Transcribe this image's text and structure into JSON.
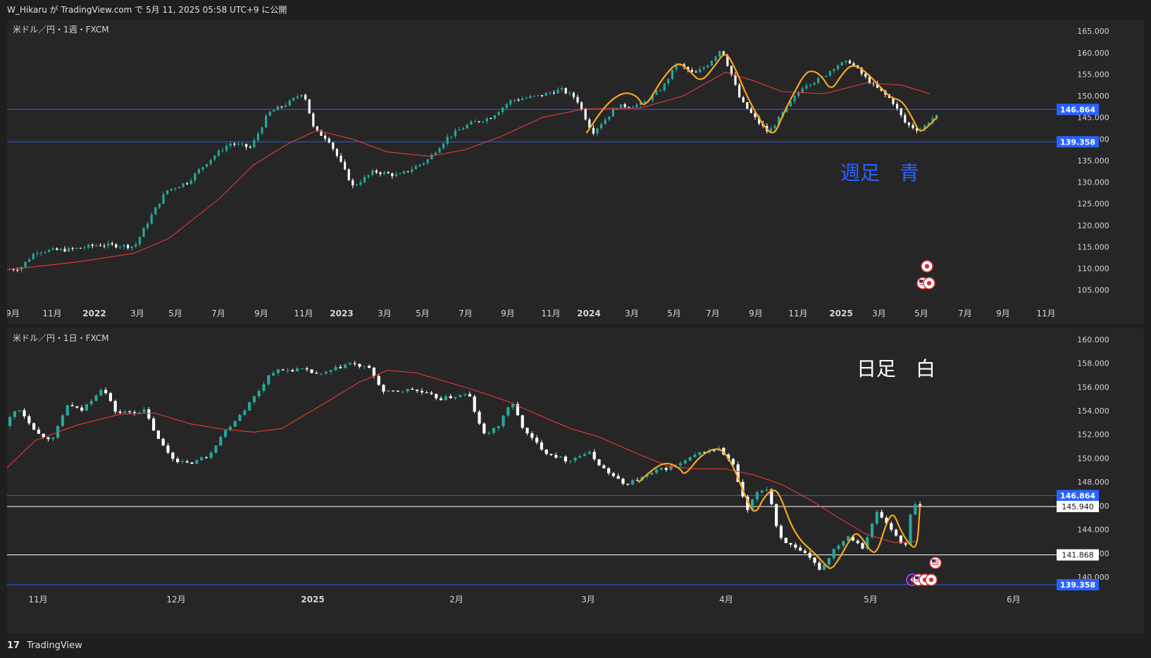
{
  "header": {
    "publish_text": "W_Hikaru が TradingView.com で 5月 11, 2025 05:58 UTC+9 に公開"
  },
  "footer": {
    "brand": "TradingView",
    "logo_glyph": "17"
  },
  "colors": {
    "bull": "#26a69a",
    "bear": "#ffffff",
    "ma": "#e53935",
    "trace": "#f5a623",
    "blue_line": "#2962ff",
    "white_line": "#ffffff",
    "axis_text": "#d1d4dc"
  },
  "chart_data": [
    {
      "type": "candlestick",
      "title": "米ドル／円・1週・FXCM",
      "annotation": "週足　青",
      "ylim": [
        102,
        167
      ],
      "y_ticks": [
        "165.000",
        "160.000",
        "155.000",
        "150.000",
        "145.000",
        "140.000",
        "135.000",
        "130.000",
        "125.000",
        "120.000",
        "115.000",
        "110.000",
        "105.000"
      ],
      "x_tick_labels": [
        "9月",
        "11月",
        "2022",
        "3月",
        "5月",
        "7月",
        "9月",
        "11月",
        "2023",
        "3月",
        "5月",
        "7月",
        "9月",
        "11月",
        "2024",
        "3月",
        "5月",
        "7月",
        "9月",
        "11月",
        "2025",
        "3月",
        "5月",
        "7月",
        "9月",
        "11月"
      ],
      "horizontal_lines": [
        {
          "value": 146.864,
          "label": "146.864",
          "color": "#2962ff"
        },
        {
          "value": 139.358,
          "label": "139.358",
          "color": "#2962ff"
        }
      ],
      "price_path": [
        [
          0,
          109.7
        ],
        [
          22,
          110.0
        ],
        [
          45,
          114.0
        ],
        [
          95,
          114.4
        ],
        [
          135,
          115.5
        ],
        [
          185,
          115.1
        ],
        [
          208,
          122.0
        ],
        [
          230,
          128.0
        ],
        [
          260,
          130.0
        ],
        [
          290,
          135.0
        ],
        [
          320,
          139.0
        ],
        [
          350,
          138.0
        ],
        [
          375,
          146.0
        ],
        [
          405,
          148.5
        ],
        [
          425,
          151.0
        ],
        [
          440,
          142.0
        ],
        [
          460,
          140.0
        ],
        [
          495,
          129.0
        ],
        [
          525,
          132.5
        ],
        [
          560,
          131.5
        ],
        [
          600,
          135.0
        ],
        [
          630,
          140.5
        ],
        [
          660,
          143.5
        ],
        [
          690,
          145.0
        ],
        [
          720,
          149.0
        ],
        [
          760,
          150.0
        ],
        [
          790,
          151.5
        ],
        [
          812,
          149.5
        ],
        [
          835,
          141.5
        ],
        [
          870,
          147.5
        ],
        [
          905,
          148.0
        ],
        [
          935,
          152.0
        ],
        [
          955,
          157.5
        ],
        [
          980,
          155.0
        ],
        [
          1000,
          157.5
        ],
        [
          1018,
          161.0
        ],
        [
          1030,
          156.0
        ],
        [
          1045,
          149.0
        ],
        [
          1070,
          144.0
        ],
        [
          1085,
          141.5
        ],
        [
          1110,
          147.0
        ],
        [
          1135,
          152.5
        ],
        [
          1160,
          154.0
        ],
        [
          1180,
          157.0
        ],
        [
          1200,
          158.0
        ],
        [
          1230,
          153.0
        ],
        [
          1260,
          149.0
        ],
        [
          1280,
          143.5
        ],
        [
          1300,
          142.0
        ],
        [
          1320,
          145.2
        ]
      ],
      "ma_path": [
        [
          0,
          109.7
        ],
        [
          100,
          111.5
        ],
        [
          180,
          113.5
        ],
        [
          230,
          117.0
        ],
        [
          300,
          126.0
        ],
        [
          350,
          134.0
        ],
        [
          400,
          139.0
        ],
        [
          440,
          142.0
        ],
        [
          490,
          140.0
        ],
        [
          540,
          137.0
        ],
        [
          600,
          136.0
        ],
        [
          650,
          137.5
        ],
        [
          700,
          140.5
        ],
        [
          760,
          145.0
        ],
        [
          820,
          147.0
        ],
        [
          900,
          147.2
        ],
        [
          960,
          150.0
        ],
        [
          1020,
          155.5
        ],
        [
          1060,
          153.5
        ],
        [
          1100,
          151.0
        ],
        [
          1160,
          150.5
        ],
        [
          1220,
          153.0
        ],
        [
          1270,
          152.5
        ],
        [
          1310,
          150.5
        ]
      ],
      "trace_path": [
        [
          823,
          141.5
        ],
        [
          850,
          148.0
        ],
        [
          875,
          151.0
        ],
        [
          895,
          150.0
        ],
        [
          905,
          147.0
        ],
        [
          930,
          154.0
        ],
        [
          952,
          158.0
        ],
        [
          968,
          156.0
        ],
        [
          985,
          153.0
        ],
        [
          1005,
          157.0
        ],
        [
          1020,
          160.5
        ],
        [
          1035,
          156.0
        ],
        [
          1050,
          150.0
        ],
        [
          1070,
          144.0
        ],
        [
          1088,
          140.5
        ],
        [
          1100,
          145.0
        ],
        [
          1110,
          148.5
        ],
        [
          1120,
          151.5
        ],
        [
          1130,
          154.5
        ],
        [
          1140,
          156.0
        ],
        [
          1155,
          155.0
        ],
        [
          1170,
          151.0
        ],
        [
          1185,
          155.0
        ],
        [
          1200,
          157.5
        ],
        [
          1220,
          155.5
        ],
        [
          1240,
          152.0
        ],
        [
          1255,
          149.5
        ],
        [
          1270,
          149.0
        ],
        [
          1285,
          145.0
        ],
        [
          1295,
          141.5
        ],
        [
          1305,
          142.5
        ],
        [
          1320,
          145.0
        ]
      ],
      "events": [
        {
          "x": 1312,
          "y": 110.0,
          "badges": [
            "jp-flag"
          ]
        },
        {
          "x": 1306,
          "y": 106.0,
          "badges": [
            "us-flag",
            "jp-flag"
          ]
        }
      ]
    },
    {
      "type": "candlestick",
      "title": "米ドル／円・1日・FXCM",
      "annotation": "日足　白",
      "ylim": [
        139.0,
        160.7
      ],
      "y_ticks": [
        "160.000",
        "158.000",
        "156.000",
        "154.000",
        "152.000",
        "150.000",
        "148.000",
        "146.000",
        "144.000",
        "142.000",
        "140.000"
      ],
      "x_tick_labels": [
        "11月",
        "12月",
        "2025",
        "2月",
        "3月",
        "4月",
        "5月",
        "6月"
      ],
      "horizontal_lines": [
        {
          "value": 146.864,
          "label": "146.864",
          "color": "#2962ff"
        },
        {
          "value": 145.94,
          "label": "145.940",
          "color": "#ffffff"
        },
        {
          "value": 141.868,
          "label": "141.868",
          "color": "#ffffff"
        },
        {
          "value": 139.358,
          "label": "139.358",
          "color": "#2962ff"
        }
      ],
      "price_path": [
        [
          0,
          152.7
        ],
        [
          20,
          154.3
        ],
        [
          50,
          152.0
        ],
        [
          70,
          151.6
        ],
        [
          90,
          154.5
        ],
        [
          110,
          154.0
        ],
        [
          140,
          156.0
        ],
        [
          160,
          153.8
        ],
        [
          200,
          154.0
        ],
        [
          220,
          151.5
        ],
        [
          240,
          150.0
        ],
        [
          260,
          149.5
        ],
        [
          290,
          150.2
        ],
        [
          310,
          152.0
        ],
        [
          340,
          154.0
        ],
        [
          360,
          155.5
        ],
        [
          380,
          157.3
        ],
        [
          420,
          157.5
        ],
        [
          450,
          157.0
        ],
        [
          490,
          158.0
        ],
        [
          520,
          157.5
        ],
        [
          540,
          155.5
        ],
        [
          580,
          155.8
        ],
        [
          620,
          155.0
        ],
        [
          660,
          155.4
        ],
        [
          680,
          152.0
        ],
        [
          700,
          152.5
        ],
        [
          720,
          154.8
        ],
        [
          740,
          152.2
        ],
        [
          770,
          150.5
        ],
        [
          800,
          149.8
        ],
        [
          830,
          150.5
        ],
        [
          850,
          149.2
        ],
        [
          880,
          147.8
        ],
        [
          900,
          148.2
        ],
        [
          930,
          149.0
        ],
        [
          960,
          149.5
        ],
        [
          990,
          150.5
        ],
        [
          1015,
          150.8
        ],
        [
          1035,
          149.5
        ],
        [
          1055,
          145.5
        ],
        [
          1070,
          147.2
        ],
        [
          1085,
          147.5
        ],
        [
          1100,
          143.5
        ],
        [
          1120,
          142.5
        ],
        [
          1140,
          141.8
        ],
        [
          1160,
          140.6
        ],
        [
          1180,
          142.5
        ],
        [
          1200,
          143.5
        ],
        [
          1220,
          142.5
        ],
        [
          1240,
          145.5
        ],
        [
          1260,
          144.0
        ],
        [
          1280,
          142.5
        ],
        [
          1290,
          146.2
        ],
        [
          1300,
          145.9
        ]
      ],
      "ma_path": [
        [
          0,
          149.2
        ],
        [
          40,
          151.5
        ],
        [
          100,
          152.8
        ],
        [
          160,
          153.7
        ],
        [
          210,
          153.8
        ],
        [
          260,
          152.9
        ],
        [
          300,
          152.5
        ],
        [
          350,
          152.2
        ],
        [
          390,
          152.5
        ],
        [
          450,
          154.6
        ],
        [
          500,
          156.4
        ],
        [
          540,
          157.4
        ],
        [
          580,
          157.2
        ],
        [
          620,
          156.5
        ],
        [
          660,
          155.8
        ],
        [
          710,
          154.8
        ],
        [
          760,
          153.5
        ],
        [
          800,
          152.5
        ],
        [
          840,
          151.8
        ],
        [
          890,
          150.5
        ],
        [
          940,
          149.3
        ],
        [
          980,
          149.1
        ],
        [
          1020,
          149.1
        ],
        [
          1060,
          148.6
        ],
        [
          1100,
          147.8
        ],
        [
          1140,
          146.5
        ],
        [
          1180,
          145.0
        ],
        [
          1220,
          143.6
        ],
        [
          1260,
          142.9
        ],
        [
          1290,
          143.0
        ]
      ],
      "trace_path": [
        [
          897,
          148.0
        ],
        [
          915,
          149.0
        ],
        [
          935,
          149.7
        ],
        [
          955,
          149.2
        ],
        [
          962,
          148.5
        ],
        [
          985,
          150.3
        ],
        [
          1012,
          151.0
        ],
        [
          1030,
          149.5
        ],
        [
          1050,
          146.5
        ],
        [
          1062,
          145.2
        ],
        [
          1075,
          146.8
        ],
        [
          1090,
          147.5
        ],
        [
          1100,
          146.5
        ],
        [
          1112,
          144.5
        ],
        [
          1125,
          143.2
        ],
        [
          1135,
          142.6
        ],
        [
          1150,
          141.8
        ],
        [
          1162,
          141.0
        ],
        [
          1170,
          140.6
        ],
        [
          1182,
          141.6
        ],
        [
          1195,
          143.0
        ],
        [
          1205,
          143.8
        ],
        [
          1215,
          143.2
        ],
        [
          1225,
          142.2
        ],
        [
          1235,
          142.0
        ],
        [
          1248,
          144.5
        ],
        [
          1258,
          145.5
        ],
        [
          1268,
          144.0
        ],
        [
          1280,
          142.8
        ],
        [
          1292,
          142.3
        ],
        [
          1296,
          146.0
        ]
      ],
      "events": [
        {
          "x": 1326,
          "y": 140.2,
          "badges": [
            "us-flag"
          ]
        },
        {
          "x": 1306,
          "y": 138.8,
          "badges": [
            "flash",
            "us-flag",
            "jp-flag",
            "jp-flag"
          ]
        }
      ]
    }
  ]
}
